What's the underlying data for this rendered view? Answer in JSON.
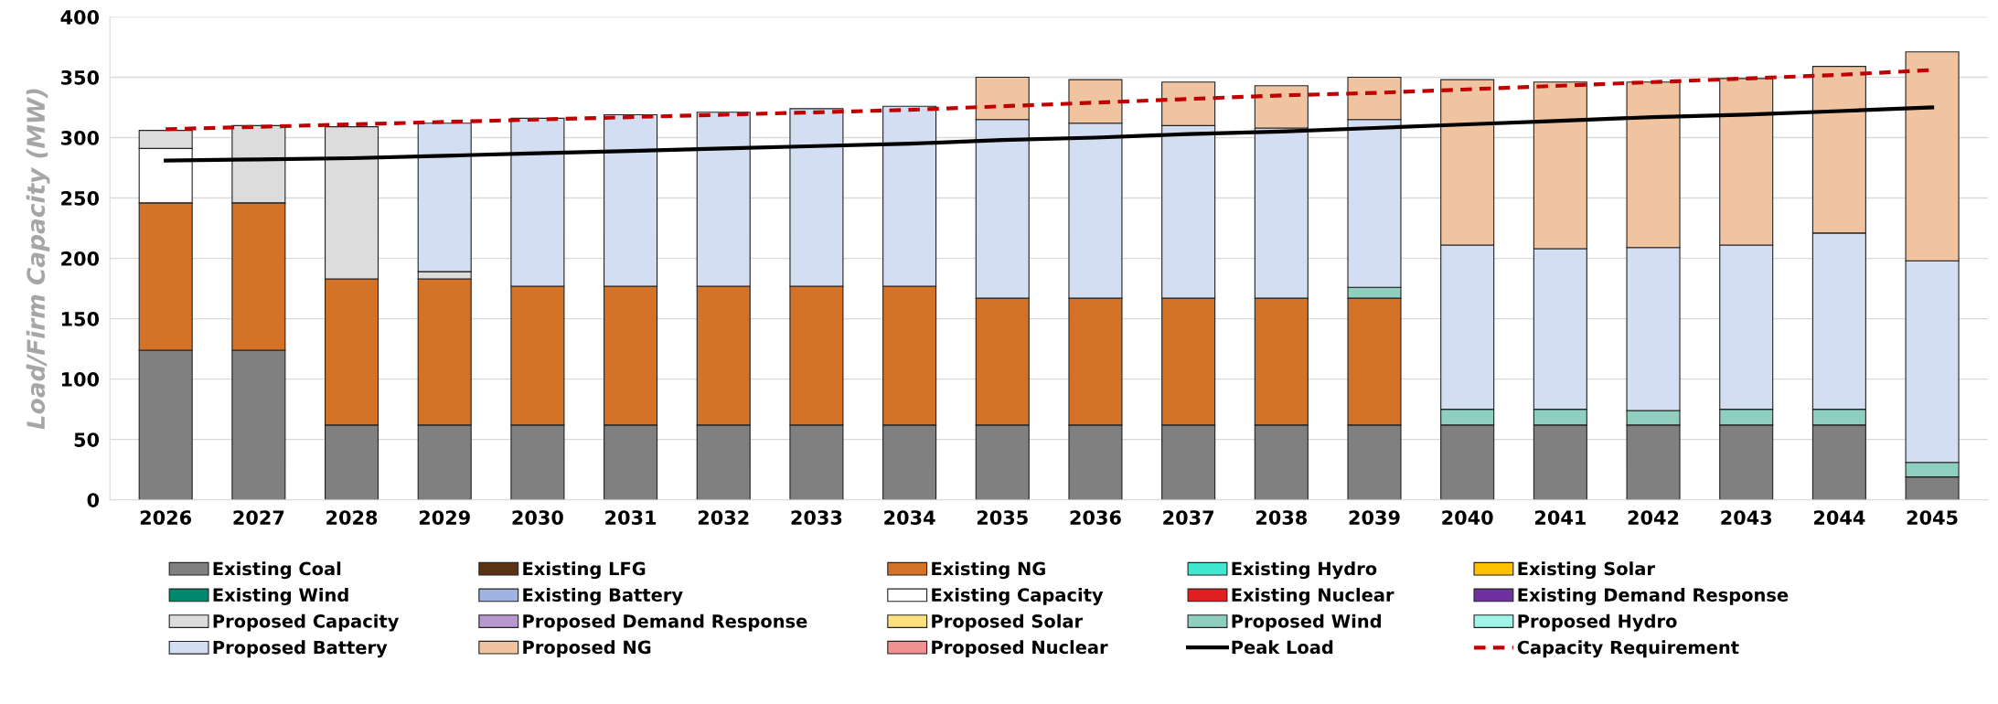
{
  "chart_data": {
    "type": "bar",
    "stacked": true,
    "ylabel": "Load/Firm Capacity (MW)",
    "categories": [
      "2026",
      "2027",
      "2028",
      "2029",
      "2030",
      "2031",
      "2032",
      "2033",
      "2034",
      "2035",
      "2036",
      "2037",
      "2038",
      "2039",
      "2040",
      "2041",
      "2042",
      "2043",
      "2044",
      "2045"
    ],
    "ylim": [
      0,
      400
    ],
    "yticks": [
      0,
      50,
      100,
      150,
      200,
      250,
      300,
      350,
      400
    ],
    "grid": "y",
    "legend": "bottom",
    "series": [
      {
        "name": "Existing Coal",
        "color": "#808080",
        "values": [
          124,
          124,
          62,
          62,
          62,
          62,
          62,
          62,
          62,
          62,
          62,
          62,
          62,
          62,
          62,
          62,
          62,
          62,
          62,
          19
        ]
      },
      {
        "name": "Existing LFG",
        "color": "#5b3214",
        "values": [
          null,
          null,
          null,
          null,
          null,
          null,
          null,
          null,
          null,
          null,
          null,
          null,
          null,
          null,
          null,
          null,
          null,
          null,
          null,
          null
        ]
      },
      {
        "name": "Existing NG",
        "color": "#d47328",
        "values": [
          122,
          122,
          121,
          121,
          115,
          115,
          115,
          115,
          115,
          105,
          105,
          105,
          105,
          105,
          null,
          null,
          null,
          null,
          null,
          null
        ]
      },
      {
        "name": "Existing Hydro",
        "color": "#40e8d0",
        "values": [
          null,
          null,
          null,
          null,
          null,
          null,
          null,
          null,
          null,
          null,
          null,
          null,
          null,
          null,
          null,
          null,
          null,
          null,
          null,
          null
        ]
      },
      {
        "name": "Existing Solar",
        "color": "#ffc000",
        "values": [
          null,
          null,
          null,
          null,
          null,
          null,
          null,
          null,
          null,
          null,
          null,
          null,
          null,
          null,
          null,
          null,
          null,
          null,
          null,
          null
        ]
      },
      {
        "name": "Existing Wind",
        "color": "#00876e",
        "values": [
          null,
          null,
          null,
          null,
          null,
          null,
          null,
          null,
          null,
          null,
          null,
          null,
          null,
          null,
          null,
          null,
          null,
          null,
          null,
          null
        ]
      },
      {
        "name": "Existing Battery",
        "color": "#9fb4e0",
        "values": [
          null,
          null,
          null,
          null,
          null,
          null,
          null,
          null,
          null,
          null,
          null,
          null,
          null,
          null,
          null,
          null,
          null,
          null,
          null,
          null
        ]
      },
      {
        "name": "Existing Capacity",
        "color": "#ffffff",
        "values": [
          45,
          null,
          null,
          null,
          null,
          null,
          null,
          null,
          null,
          null,
          null,
          null,
          null,
          null,
          null,
          null,
          null,
          null,
          null,
          null
        ]
      },
      {
        "name": "Existing Nuclear",
        "color": "#e02020",
        "values": [
          null,
          null,
          null,
          null,
          null,
          null,
          null,
          null,
          null,
          null,
          null,
          null,
          null,
          null,
          null,
          null,
          null,
          null,
          null,
          null
        ]
      },
      {
        "name": "Existing Demand Response",
        "color": "#7030a0",
        "values": [
          null,
          null,
          null,
          null,
          null,
          null,
          null,
          null,
          null,
          null,
          null,
          null,
          null,
          null,
          null,
          null,
          null,
          null,
          null,
          null
        ]
      },
      {
        "name": "Proposed Capacity",
        "color": "#dcdcdc",
        "values": [
          15,
          64,
          126,
          6,
          null,
          null,
          null,
          null,
          null,
          null,
          null,
          null,
          null,
          null,
          null,
          null,
          null,
          null,
          null,
          null
        ]
      },
      {
        "name": "Proposed Demand Response",
        "color": "#b898d0",
        "values": [
          null,
          null,
          null,
          null,
          null,
          null,
          null,
          null,
          null,
          null,
          null,
          null,
          null,
          null,
          null,
          null,
          null,
          null,
          null,
          null
        ]
      },
      {
        "name": "Proposed Solar",
        "color": "#ffe080",
        "values": [
          null,
          null,
          null,
          null,
          null,
          null,
          null,
          null,
          null,
          null,
          null,
          null,
          null,
          null,
          null,
          null,
          null,
          null,
          null,
          null
        ]
      },
      {
        "name": "Proposed Wind",
        "color": "#8fcfbf",
        "values": [
          null,
          null,
          null,
          null,
          null,
          null,
          null,
          null,
          null,
          null,
          null,
          null,
          null,
          9,
          13,
          13,
          12,
          13,
          13,
          12
        ]
      },
      {
        "name": "Proposed Hydro",
        "color": "#a0f4e8",
        "values": [
          null,
          null,
          null,
          null,
          null,
          null,
          null,
          null,
          null,
          null,
          null,
          null,
          null,
          null,
          null,
          null,
          null,
          null,
          null,
          null
        ]
      },
      {
        "name": "Proposed Battery",
        "color": "#d3def2",
        "values": [
          null,
          null,
          null,
          123,
          139,
          142,
          144,
          147,
          149,
          148,
          145,
          143,
          141,
          139,
          136,
          133,
          135,
          136,
          146,
          167
        ]
      },
      {
        "name": "Proposed NG",
        "color": "#f0c4a0",
        "values": [
          null,
          null,
          null,
          null,
          null,
          null,
          null,
          null,
          null,
          35,
          36,
          36,
          35,
          35,
          137,
          138,
          137,
          138,
          138,
          173
        ]
      },
      {
        "name": "Proposed Nuclear",
        "color": "#f09090",
        "values": [
          null,
          null,
          null,
          null,
          null,
          null,
          null,
          null,
          null,
          null,
          null,
          null,
          null,
          null,
          null,
          null,
          null,
          null,
          null,
          null
        ]
      },
      {
        "name": "Peak Load",
        "type": "line",
        "color": "#000000",
        "line_style": "solid",
        "values": [
          281,
          282,
          283,
          285,
          287,
          289,
          291,
          293,
          295,
          298,
          300,
          303,
          305,
          308,
          311,
          314,
          317,
          319,
          322,
          325
        ]
      },
      {
        "name": "Capacity Requirement",
        "type": "line",
        "color": "#c00000",
        "line_style": "dashed",
        "values": [
          307,
          309,
          311,
          313,
          315,
          317,
          319,
          321,
          323,
          326,
          329,
          332,
          335,
          337,
          340,
          343,
          346,
          349,
          352,
          356
        ]
      }
    ]
  }
}
